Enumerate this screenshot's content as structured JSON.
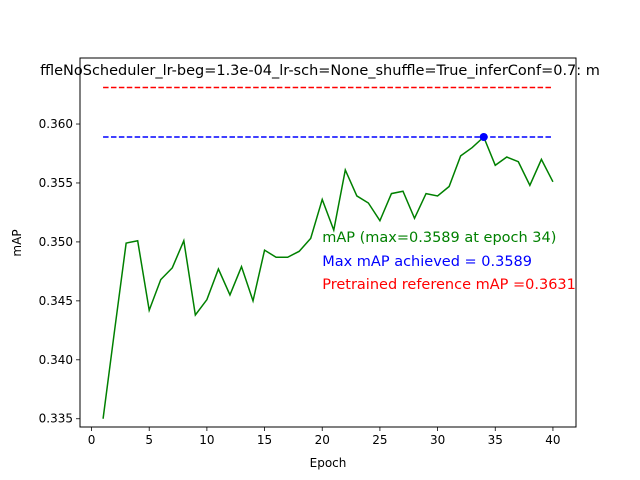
{
  "chart_data": {
    "type": "line",
    "title": "ffleNoScheduler_lr-beg=1.3e-04_lr-sch=None_shuffle=True_inferConf=0.7:  m",
    "xlabel": "Epoch",
    "ylabel": "mAP",
    "xlim": [
      -1,
      42
    ],
    "ylim": [
      0.3343,
      0.3656
    ],
    "xticks": [
      0,
      5,
      10,
      15,
      20,
      25,
      30,
      35,
      40
    ],
    "xtick_labels": [
      "0",
      "5",
      "10",
      "15",
      "20",
      "25",
      "30",
      "35",
      "40"
    ],
    "yticks": [
      0.335,
      0.34,
      0.345,
      0.35,
      0.355,
      0.36
    ],
    "ytick_labels": [
      "0.335",
      "0.340",
      "0.345",
      "0.350",
      "0.355",
      "0.360"
    ],
    "grid": false,
    "series": [
      {
        "color": "#008000",
        "style": "solid",
        "x": [
          1,
          2,
          3,
          4,
          5,
          6,
          7,
          8,
          9,
          10,
          11,
          12,
          13,
          14,
          15,
          16,
          17,
          18,
          19,
          20,
          21,
          22,
          23,
          24,
          25,
          26,
          27,
          28,
          29,
          30,
          31,
          32,
          33,
          34,
          35,
          36,
          37,
          38,
          39,
          40
        ],
        "y": [
          0.335,
          0.3425,
          0.3499,
          0.3501,
          0.3442,
          0.3468,
          0.3478,
          0.3501,
          0.3438,
          0.3451,
          0.3477,
          0.3455,
          0.3479,
          0.345,
          0.3493,
          0.3487,
          0.3487,
          0.3492,
          0.3503,
          0.3536,
          0.351,
          0.3561,
          0.3539,
          0.3533,
          0.3518,
          0.3541,
          0.3543,
          0.352,
          0.3541,
          0.3539,
          0.3547,
          0.3573,
          0.358,
          0.3589,
          0.3565,
          0.3572,
          0.3568,
          0.3548,
          0.357,
          0.3551
        ]
      },
      {
        "color": "#0000ff",
        "style": "dashed",
        "x": [
          1,
          40
        ],
        "y": [
          0.3589,
          0.3589
        ]
      },
      {
        "color": "#ff0000",
        "style": "dashed",
        "x": [
          1,
          40
        ],
        "y": [
          0.3631,
          0.3631
        ]
      }
    ],
    "marker": {
      "x": 34,
      "y": 0.3589,
      "color": "#0000ff"
    },
    "annotations": [
      {
        "text": "mAP (max=0.3589 at epoch 34)",
        "color": "#008000"
      },
      {
        "text": "Max mAP achieved = 0.3589",
        "color": "#0000ff"
      },
      {
        "text": "Pretrained reference mAP =0.3631",
        "color": "#ff0000"
      }
    ]
  }
}
